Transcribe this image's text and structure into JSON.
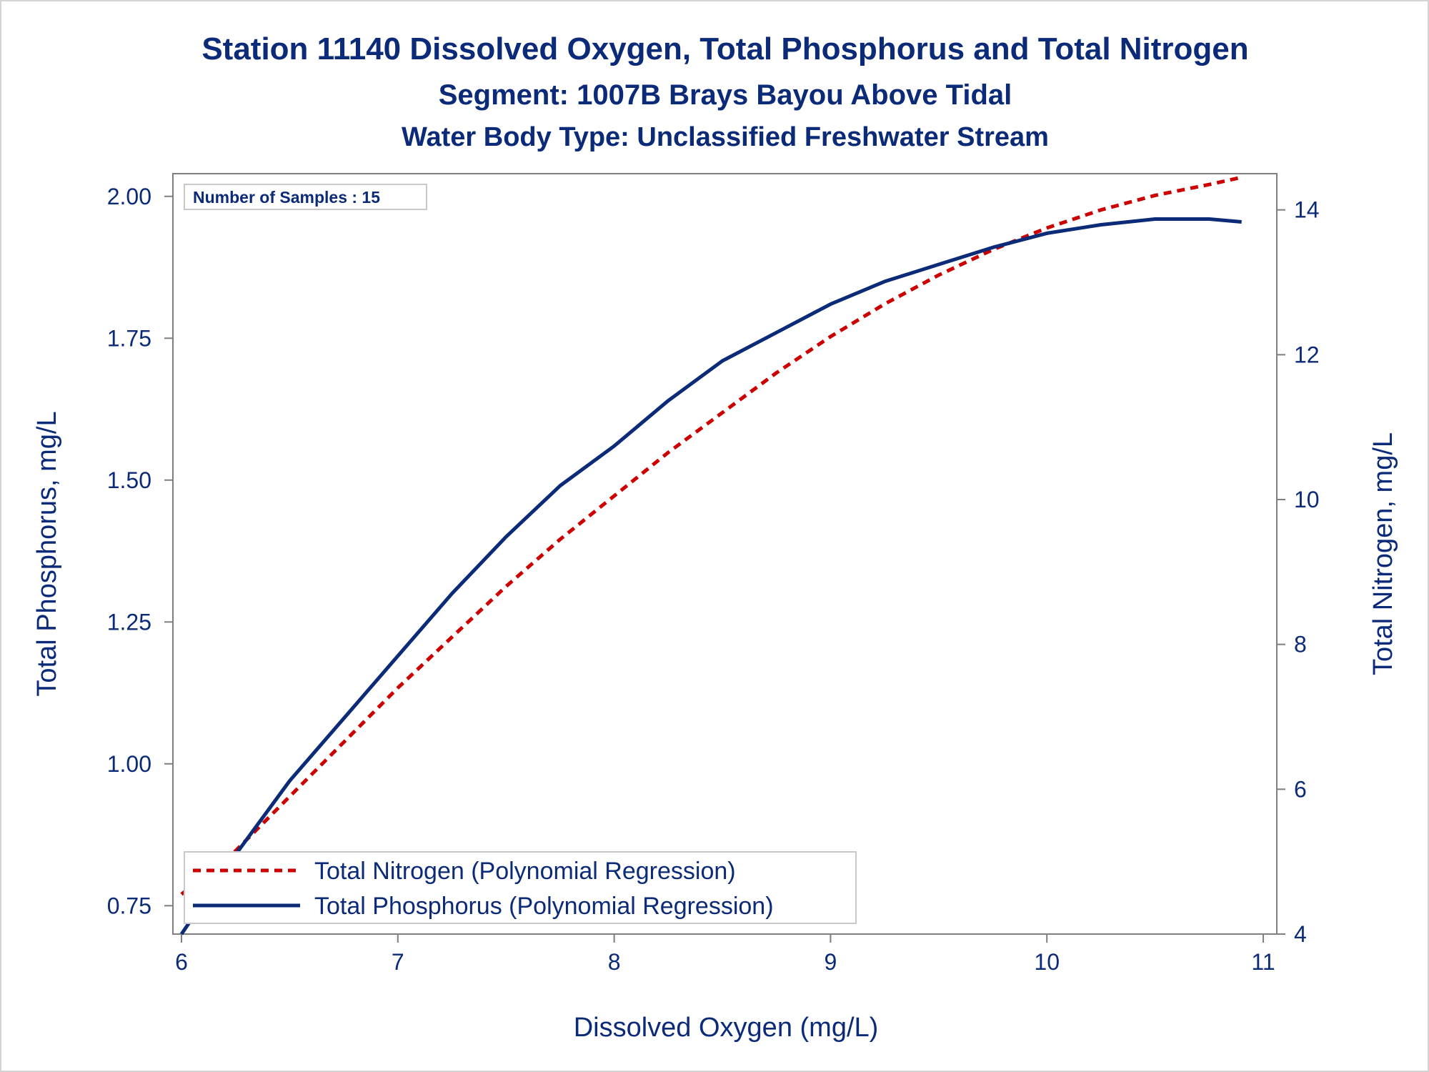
{
  "chart_data": {
    "type": "line",
    "title": "Station 11140  Dissolved Oxygen, Total Phosphorus and Total Nitrogen",
    "subtitle": "Segment: 1007B  Brays Bayou Above Tidal",
    "subtitle2": "Water Body Type: Unclassified Freshwater Stream",
    "xlabel": "Dissolved Oxygen (mg/L)",
    "ylabel": "Total Phosphorus, mg/L",
    "y2label": "Total Nitrogen, mg/L",
    "xlim": [
      6,
      11
    ],
    "ylim": [
      0.7,
      2.04
    ],
    "y2lim": [
      4,
      14.5
    ],
    "xticks": [
      "6",
      "7",
      "8",
      "9",
      "10",
      "11"
    ],
    "yticks": [
      "0.75",
      "1.00",
      "1.25",
      "1.50",
      "1.75",
      "2.00"
    ],
    "y2ticks": [
      "4",
      "6",
      "8",
      "10",
      "12",
      "14"
    ],
    "grid": false,
    "annotation": "Number of Samples : 15",
    "legend_position": "bottom-left",
    "series": [
      {
        "name": "Total Nitrogen (Polynomial Regression)",
        "axis": "right",
        "color": "#cc0000",
        "style": "dashed",
        "x": [
          6.0,
          6.25,
          6.5,
          6.75,
          7.0,
          7.25,
          7.5,
          7.75,
          8.0,
          8.25,
          8.5,
          8.75,
          9.0,
          9.25,
          9.5,
          9.75,
          10.0,
          10.25,
          10.5,
          10.75,
          10.9
        ],
        "y": [
          4.55,
          5.15,
          5.9,
          6.65,
          7.4,
          8.1,
          8.8,
          9.45,
          10.05,
          10.65,
          11.2,
          11.75,
          12.25,
          12.7,
          13.1,
          13.45,
          13.75,
          14.0,
          14.2,
          14.35,
          14.45
        ]
      },
      {
        "name": "Total Phosphorus (Polynomial Regression)",
        "axis": "left",
        "color": "#0b2a78",
        "style": "solid",
        "x": [
          6.0,
          6.25,
          6.5,
          6.75,
          7.0,
          7.25,
          7.5,
          7.75,
          8.0,
          8.25,
          8.5,
          8.75,
          9.0,
          9.25,
          9.5,
          9.75,
          10.0,
          10.25,
          10.5,
          10.75,
          10.9
        ],
        "y": [
          0.7,
          0.84,
          0.97,
          1.08,
          1.19,
          1.3,
          1.4,
          1.49,
          1.56,
          1.64,
          1.71,
          1.76,
          1.81,
          1.85,
          1.88,
          1.91,
          1.935,
          1.95,
          1.96,
          1.96,
          1.955
        ]
      }
    ]
  }
}
